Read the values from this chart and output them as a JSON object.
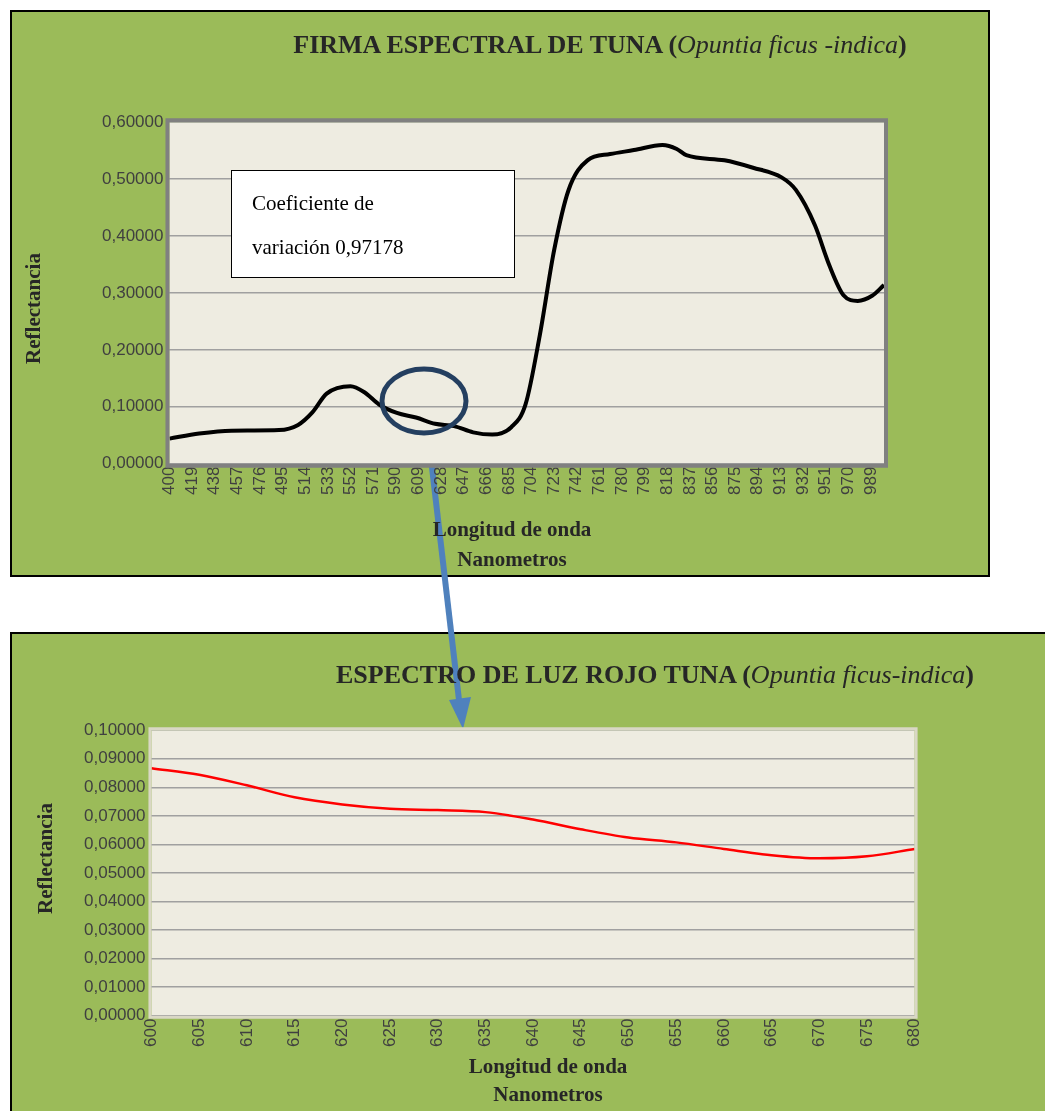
{
  "chart_data": [
    {
      "type": "line",
      "title": "FIRMA ESPECTRAL DE TUNA (Opuntia ficus -indica)",
      "xlabel": "Longitud de onda\nNanometros",
      "ylabel": "Reflectancia",
      "color": "#000000",
      "marker": "none",
      "grid": "y",
      "x": [
        400,
        425,
        452,
        492,
        508,
        520,
        532,
        552,
        564,
        576,
        591,
        607,
        623,
        639,
        655,
        671,
        687,
        699,
        711,
        723,
        735,
        751,
        770,
        790,
        814,
        826,
        834,
        866,
        890,
        914,
        926,
        942,
        954,
        966,
        978,
        990,
        1000
      ],
      "values": [
        0.044,
        0.053,
        0.058,
        0.059,
        0.068,
        0.09,
        0.123,
        0.136,
        0.125,
        0.104,
        0.089,
        0.081,
        0.07,
        0.066,
        0.055,
        0.051,
        0.064,
        0.104,
        0.226,
        0.375,
        0.48,
        0.533,
        0.544,
        0.551,
        0.56,
        0.553,
        0.542,
        0.533,
        0.52,
        0.503,
        0.481,
        0.419,
        0.349,
        0.296,
        0.286,
        0.295,
        0.314
      ],
      "xlim": [
        400,
        1000
      ],
      "xticks": [
        400,
        419,
        438,
        457,
        476,
        495,
        514,
        533,
        552,
        571,
        590,
        609,
        628,
        647,
        666,
        685,
        704,
        723,
        742,
        761,
        780,
        799,
        818,
        837,
        856,
        875,
        894,
        913,
        932,
        951,
        970,
        989
      ],
      "ylim": [
        0,
        0.6
      ],
      "yticks": [
        {
          "value": 0,
          "label": "0,00000"
        },
        {
          "value": 0.1,
          "label": "0,10000"
        },
        {
          "value": 0.2,
          "label": "0,20000"
        },
        {
          "value": 0.3,
          "label": "0,30000"
        },
        {
          "value": 0.4,
          "label": "0,40000"
        },
        {
          "value": 0.5,
          "label": "0,50000"
        },
        {
          "value": 0.6,
          "label": "0,60000"
        }
      ],
      "annotations": [
        "Coeficiente de variación 0,97178"
      ]
    },
    {
      "type": "line",
      "title": "ESPECTRO DE LUZ ROJO TUNA (Opuntia ficus-indica)",
      "xlabel": "Longitud de onda\nNanometros",
      "ylabel": "Reflectancia",
      "color": "#ff0000",
      "marker": "none",
      "grid": "y",
      "x": [
        600,
        605,
        610,
        615,
        620,
        625,
        630,
        635,
        640,
        645,
        650,
        655,
        660,
        665,
        670,
        675,
        680
      ],
      "values": [
        0.0867,
        0.0844,
        0.0807,
        0.0765,
        0.074,
        0.0725,
        0.072,
        0.0713,
        0.0687,
        0.0653,
        0.0624,
        0.0607,
        0.0584,
        0.0562,
        0.0551,
        0.0558,
        0.0584
      ],
      "xlim": [
        600,
        680
      ],
      "xticks": [
        600,
        605,
        610,
        615,
        620,
        625,
        630,
        635,
        640,
        645,
        650,
        655,
        660,
        665,
        670,
        675,
        680
      ],
      "ylim": [
        0,
        0.1
      ],
      "yticks": [
        {
          "value": 0,
          "label": "0,00000"
        },
        {
          "value": 0.01,
          "label": "0,01000"
        },
        {
          "value": 0.02,
          "label": "0,02000"
        },
        {
          "value": 0.03,
          "label": "0,03000"
        },
        {
          "value": 0.04,
          "label": "0,04000"
        },
        {
          "value": 0.05,
          "label": "0,05000"
        },
        {
          "value": 0.06,
          "label": "0,06000"
        },
        {
          "value": 0.07,
          "label": "0,07000"
        },
        {
          "value": 0.08,
          "label": "0,08000"
        },
        {
          "value": 0.09,
          "label": "0,09000"
        },
        {
          "value": 0.1,
          "label": "0,10000"
        }
      ]
    }
  ]
}
